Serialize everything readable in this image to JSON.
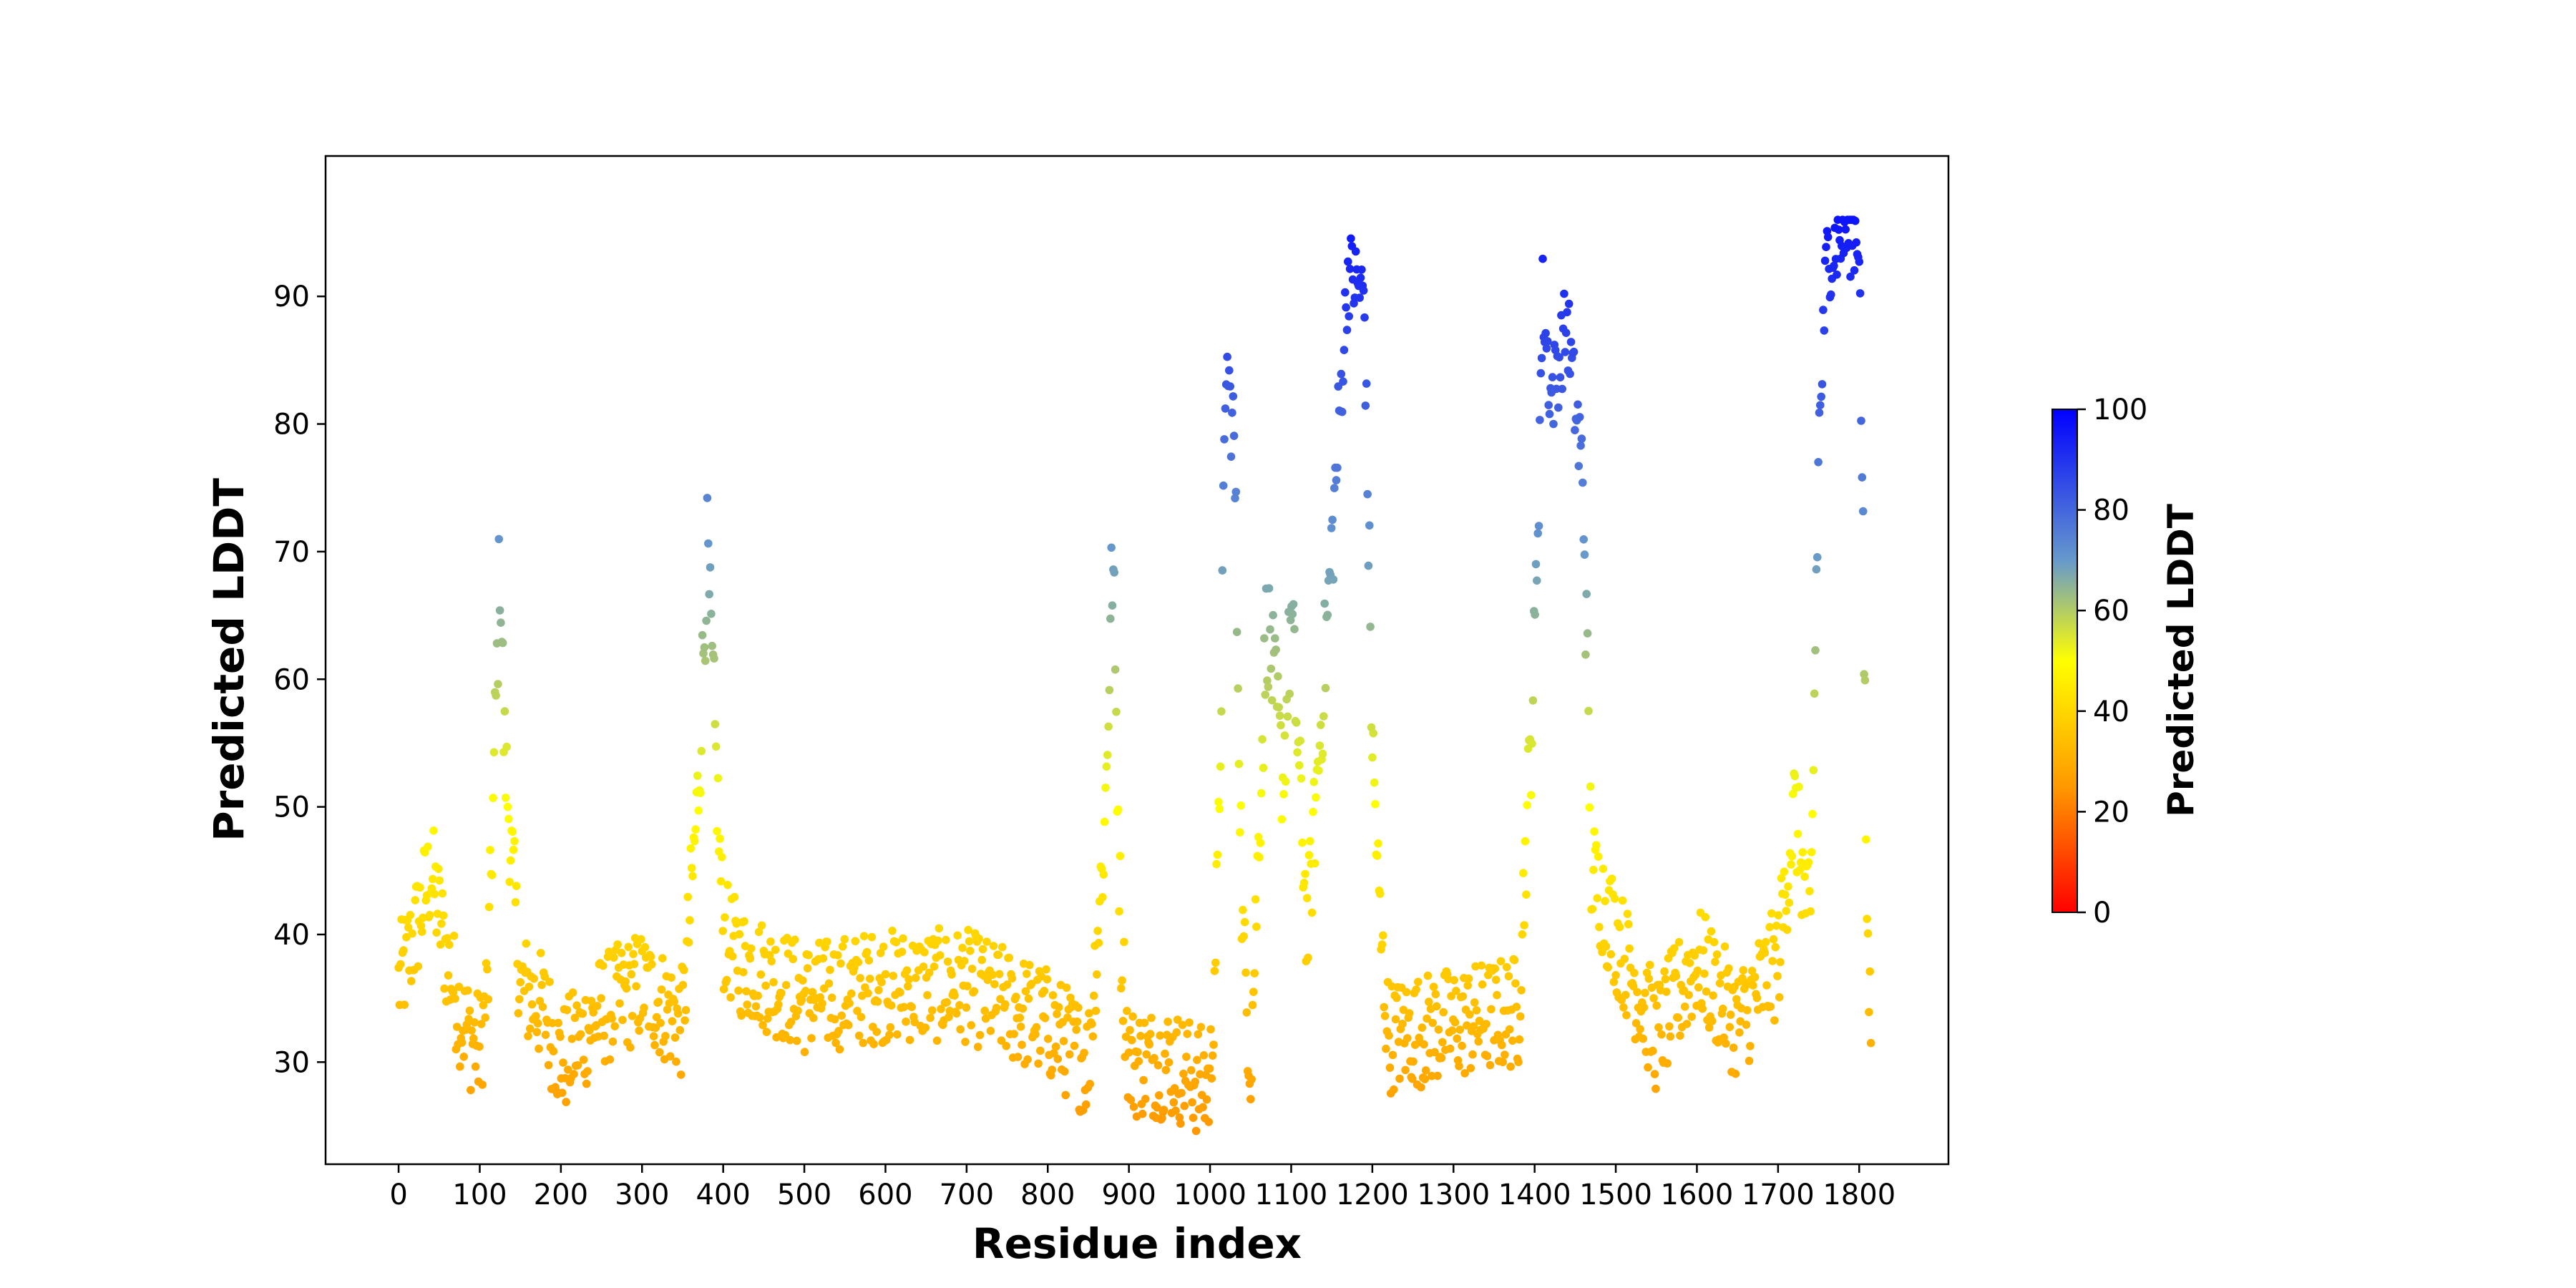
{
  "chart_data": {
    "type": "scatter",
    "title": "",
    "xlabel": "Residue index",
    "ylabel": "Predicted LDDT",
    "xlim": [
      -90,
      1910
    ],
    "ylim": [
      22,
      101
    ],
    "xticks": [
      0,
      100,
      200,
      300,
      400,
      500,
      600,
      700,
      800,
      900,
      1000,
      1100,
      1200,
      1300,
      1400,
      1500,
      1600,
      1700,
      1800
    ],
    "yticks": [
      30,
      40,
      50,
      60,
      70,
      80,
      90
    ],
    "grid": false,
    "legend": "none",
    "point_color": "colored by Predicted LDDT value (colorbar)",
    "colorbar": {
      "label": "Predicted LDDT",
      "range": [
        0,
        100
      ],
      "ticks": [
        0,
        20,
        40,
        60,
        80,
        100
      ],
      "colors": [
        "#ff0000",
        "#ff9900",
        "#ffff00",
        "#6699cc",
        "#0000ff"
      ]
    },
    "approximate_profile": {
      "description_points_x": [
        0,
        10,
        20,
        40,
        60,
        80,
        100,
        110,
        120,
        125,
        130,
        150,
        180,
        200,
        250,
        300,
        350,
        370,
        380,
        400,
        420,
        500,
        600,
        700,
        800,
        850,
        870,
        880,
        890,
        900,
        950,
        1000,
        1010,
        1020,
        1030,
        1040,
        1050,
        1070,
        1090,
        1100,
        1120,
        1150,
        1170,
        1190,
        1200,
        1210,
        1220,
        1300,
        1380,
        1400,
        1410,
        1420,
        1440,
        1460,
        1470,
        1500,
        1550,
        1600,
        1650,
        1700,
        1720,
        1740,
        1750,
        1760,
        1780,
        1800,
        1810,
        1815
      ],
      "description_points_y": [
        36,
        38,
        40,
        45,
        38,
        33,
        31,
        36,
        58,
        70,
        55,
        36,
        34,
        30,
        34,
        36,
        33,
        52,
        70,
        40,
        38,
        35,
        36,
        36,
        33,
        30,
        48,
        70,
        40,
        30,
        30,
        28,
        45,
        85,
        78,
        40,
        30,
        65,
        52,
        65,
        40,
        70,
        92,
        90,
        55,
        40,
        32,
        33,
        34,
        62,
        90,
        82,
        88,
        75,
        45,
        40,
        32,
        38,
        33,
        38,
        50,
        40,
        78,
        93,
        95,
        95,
        40,
        31
      ]
    }
  }
}
